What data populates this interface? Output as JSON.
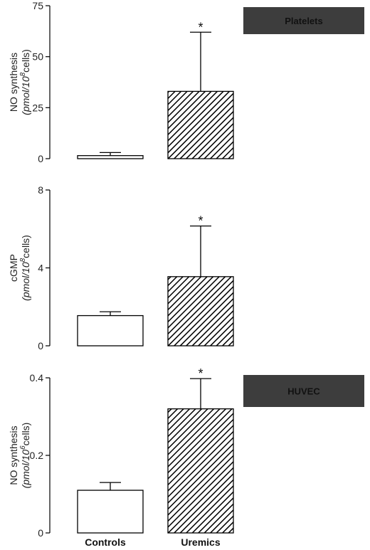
{
  "chart_data": [
    {
      "type": "bar",
      "panel_label": "Platelets",
      "ylabel_main": "NO synthesis",
      "ylabel_unit_a": "(pmol/10",
      "ylabel_unit_sup": "8",
      "ylabel_unit_b": "cells)",
      "categories": [
        "Controls",
        "Uremics"
      ],
      "values": [
        1.5,
        33
      ],
      "errors": [
        1.5,
        29
      ],
      "significance": [
        "",
        "*"
      ],
      "ylim": [
        0,
        75
      ],
      "yticks": [
        0,
        25,
        50,
        75
      ],
      "ytick_labels": [
        "0",
        "25",
        "50",
        "75"
      ],
      "fills": [
        "white",
        "hatched"
      ]
    },
    {
      "type": "bar",
      "panel_label": "",
      "ylabel_main": "cGMP",
      "ylabel_unit_a": "(pmol/10",
      "ylabel_unit_sup": "8",
      "ylabel_unit_b": "cells)",
      "categories": [
        "Controls",
        "Uremics"
      ],
      "values": [
        1.55,
        3.55
      ],
      "errors": [
        0.2,
        2.6
      ],
      "significance": [
        "",
        "*"
      ],
      "ylim": [
        0,
        8
      ],
      "yticks": [
        0,
        4,
        8
      ],
      "ytick_labels": [
        "0",
        "4",
        "8"
      ],
      "fills": [
        "white",
        "hatched"
      ]
    },
    {
      "type": "bar",
      "panel_label": "HUVEC",
      "ylabel_main": "NO synthesis",
      "ylabel_unit_a": "(pmol/10",
      "ylabel_unit_sup": "6",
      "ylabel_unit_b": "cells)",
      "categories": [
        "Controls",
        "Uremics"
      ],
      "values": [
        0.11,
        0.32
      ],
      "errors": [
        0.02,
        0.078
      ],
      "significance": [
        "",
        "*"
      ],
      "ylim": [
        0,
        0.4
      ],
      "yticks": [
        0,
        0.2,
        0.4
      ],
      "ytick_labels": [
        "0",
        "0.2",
        "0.4"
      ],
      "fills": [
        "white",
        "hatched"
      ]
    }
  ],
  "x_category_labels": [
    "Controls",
    "Uremics"
  ]
}
